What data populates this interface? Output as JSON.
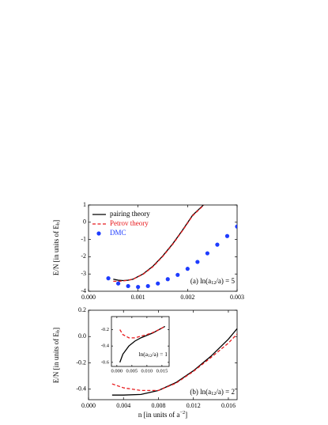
{
  "chart_data": [
    {
      "type": "line",
      "ylabel": [
        "E/N [in units of E",
        "b",
        "]"
      ],
      "annotation": [
        "(a) ln(a",
        "12",
        "/a) = 5"
      ],
      "xlim": [
        0,
        0.003
      ],
      "xticks": [
        {
          "value": 0,
          "label": "0.000"
        },
        {
          "value": 0.001,
          "label": "0.001"
        },
        {
          "value": 0.002,
          "label": "0.002"
        },
        {
          "value": 0.003,
          "label": "0.003"
        }
      ],
      "ylim": [
        -4,
        1
      ],
      "yticks": [
        1,
        0,
        -1,
        -2,
        -3,
        -4
      ],
      "legend": "upper left",
      "series": [
        {
          "name": "pairing theory",
          "color": "#000000",
          "style": "solid",
          "x": [
            0.0005,
            0.0006,
            0.0007,
            0.0008,
            0.0009,
            0.0011,
            0.0013,
            0.0015,
            0.0017,
            0.0019,
            0.0021,
            0.00232
          ],
          "values": [
            -3.3,
            -3.36,
            -3.38,
            -3.36,
            -3.3,
            -3.0,
            -2.55,
            -1.95,
            -1.25,
            -0.45,
            0.4,
            1.0
          ]
        },
        {
          "name": "Petrov theory",
          "color": "#e8191c",
          "style": "dashed",
          "x": [
            0.0005,
            0.0006,
            0.0007,
            0.0008,
            0.0009,
            0.0011,
            0.0013,
            0.0015,
            0.0017,
            0.0019,
            0.0021,
            0.00233
          ],
          "values": [
            -3.42,
            -3.42,
            -3.4,
            -3.36,
            -3.3,
            -3.02,
            -2.58,
            -1.98,
            -1.28,
            -0.48,
            0.37,
            1.0
          ]
        },
        {
          "name": "DMC",
          "color": "#1e3cff",
          "style": "markers",
          "x": [
            0.0004,
            0.0006,
            0.0008,
            0.001,
            0.0012,
            0.0014,
            0.0016,
            0.0018,
            0.002,
            0.0022,
            0.0024,
            0.0026,
            0.0028,
            0.003
          ],
          "values": [
            -3.25,
            -3.55,
            -3.7,
            -3.75,
            -3.7,
            -3.55,
            -3.3,
            -3.05,
            -2.7,
            -2.3,
            -1.8,
            -1.3,
            -0.8,
            -0.25
          ]
        }
      ]
    },
    {
      "type": "line",
      "ylabel": [
        "E/N [in units of E",
        "b",
        "]"
      ],
      "xlabel": [
        "n [in units of a",
        "−2",
        "]"
      ],
      "annotation": [
        "(b) ln(a",
        "12",
        "/a) = 2"
      ],
      "xlim": [
        0,
        0.017
      ],
      "xticks": [
        {
          "value": 0,
          "label": "0.000"
        },
        {
          "value": 0.004,
          "label": "0.004"
        },
        {
          "value": 0.008,
          "label": "0.008"
        },
        {
          "value": 0.012,
          "label": "0.012"
        },
        {
          "value": 0.016,
          "label": "0.016"
        }
      ],
      "ylim": [
        -0.48,
        0.2
      ],
      "yticks": [
        0.2,
        {
          "value": 0,
          "label": "0.0"
        },
        -0.2,
        -0.4
      ],
      "series": [
        {
          "name": "pairing theory",
          "color": "#000000",
          "style": "solid",
          "x": [
            0.0027,
            0.004,
            0.006,
            0.008,
            0.01,
            0.012,
            0.014,
            0.016,
            0.017
          ],
          "values": [
            -0.445,
            -0.445,
            -0.44,
            -0.41,
            -0.35,
            -0.26,
            -0.15,
            -0.02,
            0.06
          ]
        },
        {
          "name": "Petrov theory",
          "color": "#e8191c",
          "style": "dashed",
          "x": [
            0.0027,
            0.004,
            0.006,
            0.008,
            0.01,
            0.012,
            0.014,
            0.016,
            0.017
          ],
          "values": [
            -0.36,
            -0.39,
            -0.41,
            -0.41,
            -0.355,
            -0.265,
            -0.16,
            -0.05,
            0.02
          ]
        }
      ]
    },
    {
      "type": "line",
      "annotation": [
        "ln(a",
        "12",
        "/a) = 1"
      ],
      "xlim": [
        -0.0018,
        0.0174
      ],
      "xticks": [
        {
          "value": 0,
          "label": "0.000"
        },
        {
          "value": 0.005,
          "label": "0.005"
        },
        {
          "value": 0.01,
          "label": "0.010"
        },
        {
          "value": 0.015,
          "label": "0.015"
        }
      ],
      "ylim": [
        -0.65,
        -0.04
      ],
      "yticks": [
        -0.2,
        -0.4,
        -0.6
      ],
      "series": [
        {
          "name": "pairing theory",
          "color": "#000000",
          "style": "solid",
          "x": [
            0.001,
            0.002,
            0.004,
            0.006,
            0.008,
            0.01,
            0.012,
            0.014,
            0.016
          ],
          "values": [
            -0.6,
            -0.5,
            -0.4,
            -0.34,
            -0.3,
            -0.27,
            -0.24,
            -0.2,
            -0.16
          ]
        },
        {
          "name": "Petrov theory",
          "color": "#e8191c",
          "style": "dashed",
          "x": [
            0.001,
            0.002,
            0.004,
            0.006,
            0.008,
            0.01,
            0.012,
            0.014,
            0.016
          ],
          "values": [
            -0.2,
            -0.26,
            -0.3,
            -0.3,
            -0.28,
            -0.26,
            -0.235,
            -0.2,
            -0.16
          ]
        }
      ]
    }
  ]
}
